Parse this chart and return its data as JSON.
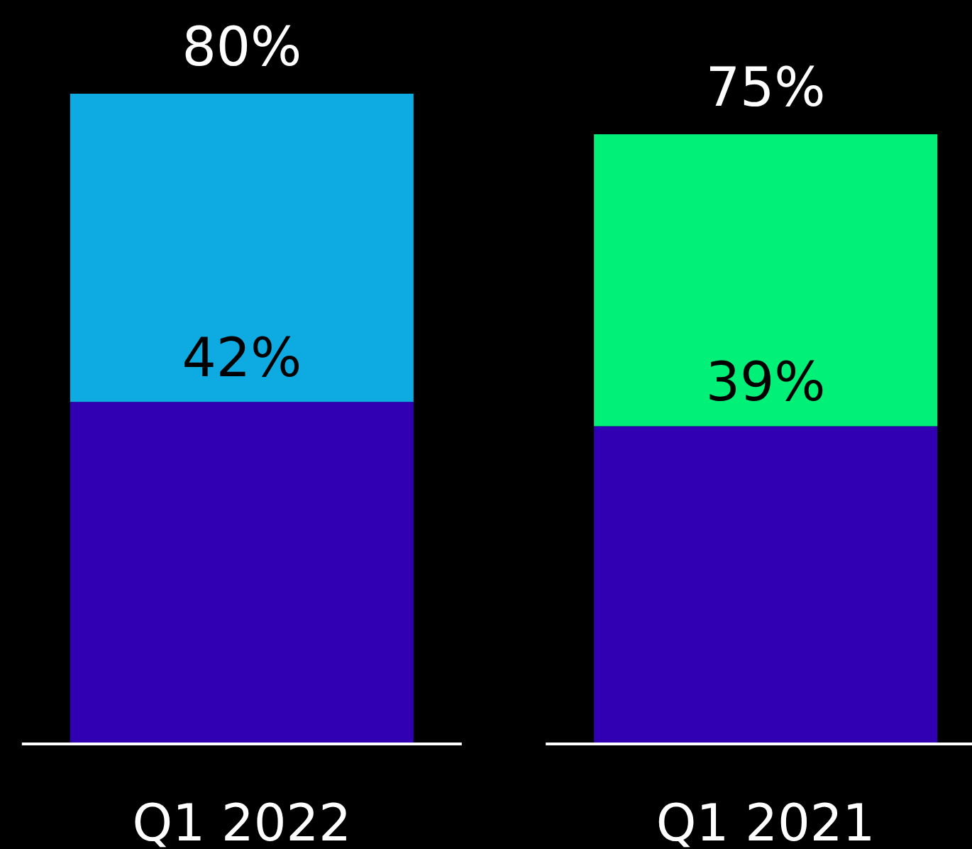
{
  "chart_data": {
    "type": "bar",
    "stacked": true,
    "categories": [
      "Q1 2022",
      "Q1 2021"
    ],
    "series": [
      {
        "color": "#3000b2",
        "values": [
          42,
          39
        ],
        "value_labels": [
          "42%",
          "39%"
        ]
      },
      {
        "colors": [
          "#0eabe3",
          "#00f078"
        ],
        "values": [
          38,
          36
        ]
      }
    ],
    "totals": [
      "80%",
      "75%"
    ]
  }
}
